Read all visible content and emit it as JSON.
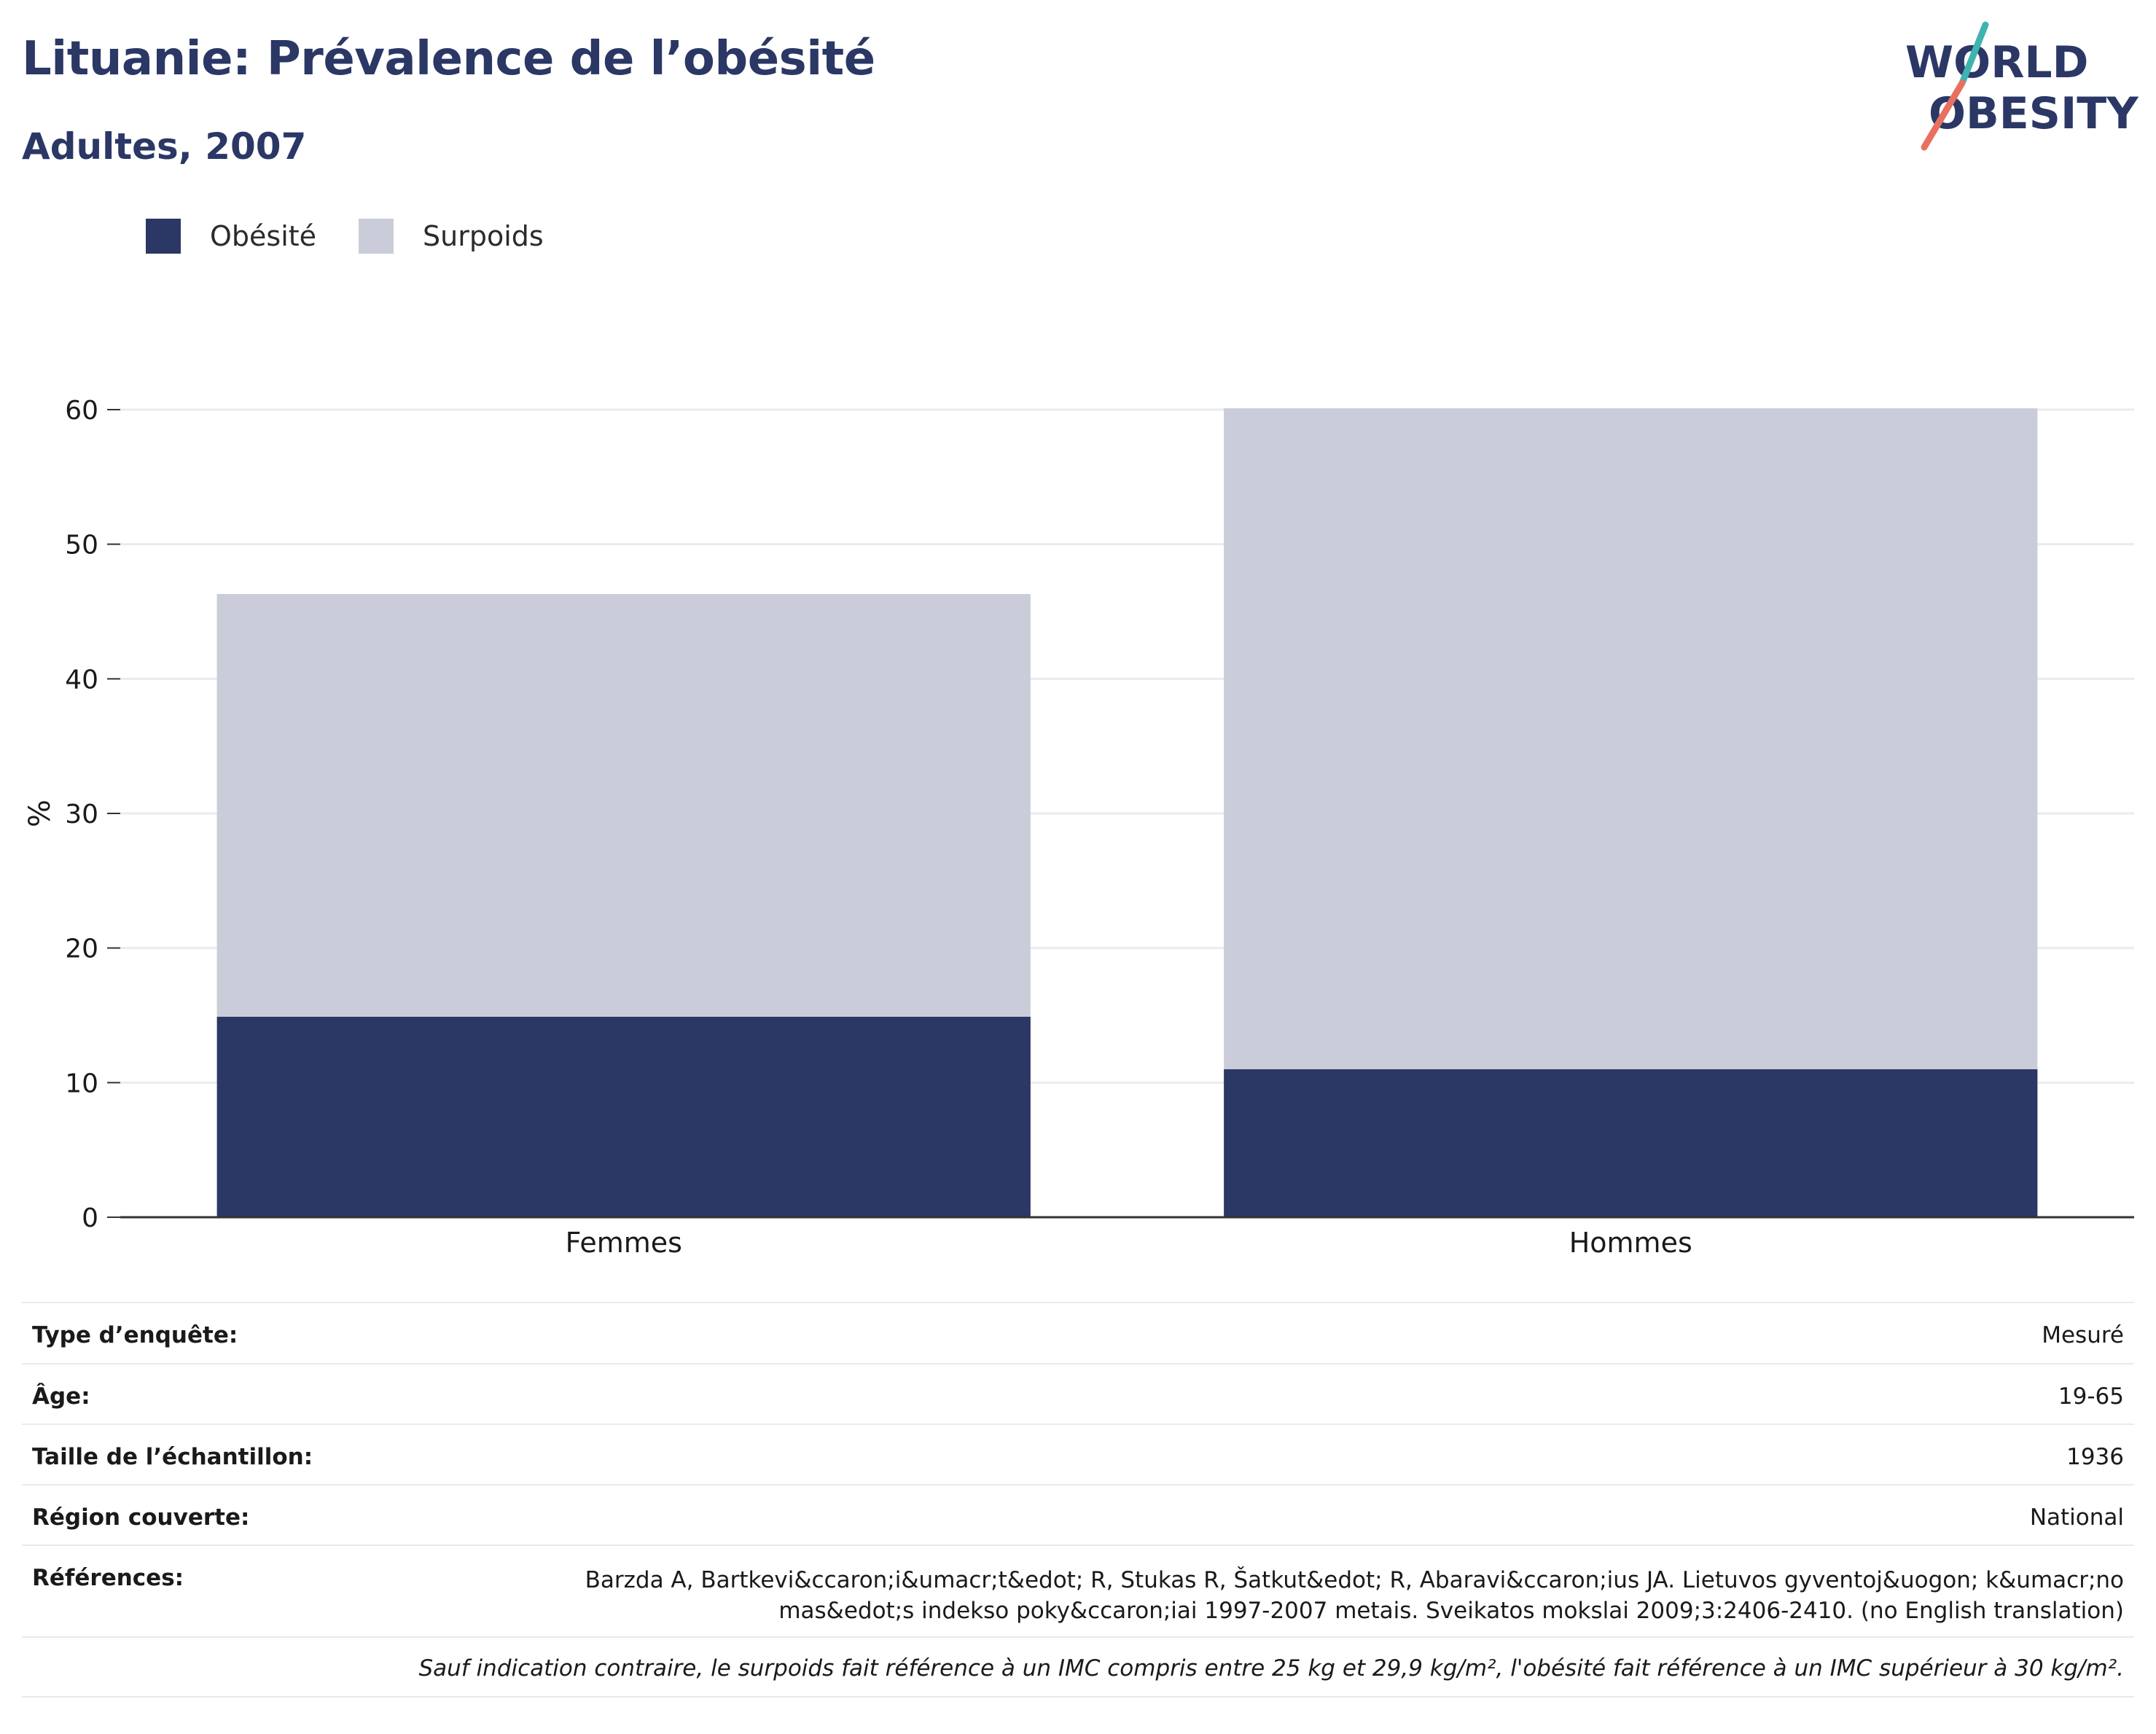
{
  "header": {
    "title": "Lituanie: Prévalence de l’obésité",
    "subtitle": "Adultes, 2007"
  },
  "logo": {
    "line1": "WORLD",
    "line2": "OBESITY",
    "colors": {
      "text": "#2b3765",
      "slash_top": "#3fb3b0",
      "slash_bottom": "#e8705f"
    }
  },
  "legend": {
    "items": [
      {
        "label": "Obésité",
        "color": "#2b3765"
      },
      {
        "label": "Surpoids",
        "color": "#cacdd9"
      }
    ]
  },
  "chart_data": {
    "type": "bar",
    "stacked": true,
    "categories": [
      "Femmes",
      "Hommes"
    ],
    "series": [
      {
        "name": "Obésité",
        "values": [
          14.9,
          11.0
        ],
        "color": "#2b3765"
      },
      {
        "name": "Surpoids",
        "values": [
          31.4,
          49.1
        ],
        "color": "#cacdd9"
      }
    ],
    "ylabel": "%",
    "ylim": [
      0,
      60
    ],
    "yticks": [
      0,
      10,
      20,
      30,
      40,
      50,
      60
    ],
    "grid": true,
    "legend_position": "top-left"
  },
  "info": {
    "rows": [
      {
        "label": "Type d’enquête:",
        "value": "Mesuré"
      },
      {
        "label": "Âge:",
        "value": "19-65"
      },
      {
        "label": "Taille de l’échantillon:",
        "value": "1936"
      },
      {
        "label": "Région couverte:",
        "value": "National"
      },
      {
        "label": "Références:",
        "value": "Barzda A, Bartkevi&ccaron;i&umacr;t&edot; R, Stukas R, Šatkut&edot; R, Abaravi&ccaron;ius JA. Lietuvos gyventoj&uogon; k&umacr;no mas&edot;s indekso poky&ccaron;iai 1997-2007 metais. Sveikatos mokslai 2009;3:2406-2410. (no English translation)"
      }
    ],
    "note": "Sauf indication contraire, le surpoids fait référence à un IMC compris entre 25 kg et 29,9 kg/m², l'obésité fait référence à un IMC supérieur à 30 kg/m²."
  }
}
